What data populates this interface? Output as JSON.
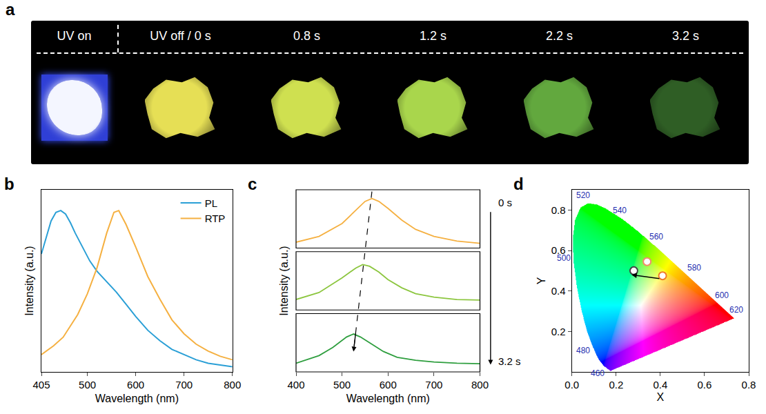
{
  "panel_a": {
    "letter": "a",
    "frames": [
      {
        "label": "UV on",
        "color": "#f4f6ff"
      },
      {
        "label": "UV off / 0 s",
        "color": "#e6df55"
      },
      {
        "label": "0.8 s",
        "color": "#cfe050"
      },
      {
        "label": "1.2 s",
        "color": "#a9d64c"
      },
      {
        "label": "2.2 s",
        "color": "#62a83e"
      },
      {
        "label": "3.2 s",
        "color": "#2f5e25"
      }
    ]
  },
  "chart_data": [
    {
      "letter": "b",
      "type": "line",
      "xlabel": "Wavelength (nm)",
      "ylabel": "Intensity (a.u.)",
      "xlim": [
        405,
        800
      ],
      "xticks": [
        405,
        500,
        600,
        700,
        800
      ],
      "ylim": [
        0,
        1.05
      ],
      "tick_labels": "x",
      "legend": "top right",
      "series": [
        {
          "name": "PL",
          "color": "#2a9fd6",
          "x": [
            405,
            415,
            425,
            435,
            445,
            455,
            465,
            475,
            490,
            505,
            520,
            540,
            560,
            580,
            600,
            625,
            650,
            675,
            700,
            725,
            750,
            775,
            800
          ],
          "values": [
            0.68,
            0.78,
            0.87,
            0.92,
            0.93,
            0.91,
            0.86,
            0.8,
            0.72,
            0.64,
            0.58,
            0.52,
            0.46,
            0.39,
            0.32,
            0.24,
            0.18,
            0.13,
            0.1,
            0.07,
            0.05,
            0.04,
            0.03
          ]
        },
        {
          "name": "RTP",
          "color": "#f5b041",
          "x": [
            405,
            430,
            450,
            480,
            500,
            520,
            540,
            555,
            565,
            580,
            600,
            625,
            650,
            675,
            700,
            725,
            750,
            775,
            800
          ],
          "values": [
            0.1,
            0.15,
            0.2,
            0.33,
            0.45,
            0.6,
            0.8,
            0.92,
            0.93,
            0.85,
            0.72,
            0.55,
            0.42,
            0.3,
            0.22,
            0.16,
            0.12,
            0.09,
            0.07
          ]
        }
      ]
    },
    {
      "letter": "c",
      "type": "line",
      "xlabel": "Wavelength (nm)",
      "ylabel": "Intensity (a.u.)",
      "xlim": [
        400,
        800
      ],
      "xticks": [
        400,
        500,
        600,
        700,
        800
      ],
      "ylim": [
        0,
        1
      ],
      "tick_labels": "x",
      "time_labels": [
        "0 s",
        "3.2 s"
      ],
      "series": [
        {
          "color": "#f5b041",
          "x": [
            400,
            450,
            500,
            530,
            550,
            565,
            580,
            600,
            630,
            660,
            700,
            750,
            800
          ],
          "values": [
            0.1,
            0.2,
            0.42,
            0.65,
            0.8,
            0.85,
            0.8,
            0.68,
            0.48,
            0.32,
            0.2,
            0.12,
            0.08
          ]
        },
        {
          "color": "#8cc63f",
          "x": [
            400,
            450,
            500,
            530,
            545,
            560,
            580,
            600,
            630,
            660,
            700,
            750,
            800
          ],
          "values": [
            0.18,
            0.3,
            0.55,
            0.72,
            0.78,
            0.75,
            0.65,
            0.52,
            0.38,
            0.28,
            0.22,
            0.18,
            0.17
          ]
        },
        {
          "color": "#2e9e3e",
          "x": [
            400,
            450,
            480,
            510,
            525,
            540,
            560,
            590,
            620,
            660,
            700,
            750,
            800
          ],
          "values": [
            0.15,
            0.28,
            0.42,
            0.6,
            0.65,
            0.6,
            0.5,
            0.35,
            0.25,
            0.2,
            0.17,
            0.15,
            0.14
          ]
        }
      ]
    },
    {
      "letter": "d",
      "type": "scatter",
      "xlabel": "X",
      "ylabel": "Y",
      "xlim": [
        0,
        0.8
      ],
      "xticks": [
        {
          "value": 0,
          "label": "0.0"
        },
        0.2,
        0.4,
        0.6,
        0.8
      ],
      "ylim": [
        0,
        0.9
      ],
      "yticks": [
        0.2,
        0.4,
        0.6,
        0.8
      ],
      "locus": {
        "x": [
          0.1741,
          0.144,
          0.1241,
          0.1096,
          0.0913,
          0.0687,
          0.0454,
          0.0235,
          0.0082,
          0.0039,
          0.0139,
          0.0389,
          0.0743,
          0.1142,
          0.1547,
          0.2296,
          0.3016,
          0.3731,
          0.4441,
          0.5125,
          0.5752,
          0.627,
          0.6658,
          0.6915,
          0.719,
          0.7347
        ],
        "y": [
          0.005,
          0.0297,
          0.0578,
          0.0868,
          0.1327,
          0.2007,
          0.295,
          0.4127,
          0.5384,
          0.6548,
          0.7502,
          0.812,
          0.8338,
          0.8262,
          0.8059,
          0.7543,
          0.6923,
          0.6245,
          0.5547,
          0.4866,
          0.4242,
          0.3725,
          0.334,
          0.3083,
          0.2809,
          0.2653
        ],
        "labels": [
          null,
          460,
          null,
          null,
          480,
          null,
          null,
          null,
          500,
          null,
          null,
          null,
          520,
          null,
          null,
          540,
          null,
          560,
          null,
          580,
          null,
          600,
          null,
          620,
          null,
          null
        ]
      },
      "points": {
        "x": [
          0.41,
          0.34,
          0.28
        ],
        "y": [
          0.475,
          0.545,
          0.5
        ],
        "colors": [
          "#f07a2a",
          "#f28c6a",
          "#444444"
        ]
      },
      "arrow": {
        "from": [
          0.4,
          0.46
        ],
        "to": [
          0.27,
          0.48
        ]
      }
    }
  ]
}
